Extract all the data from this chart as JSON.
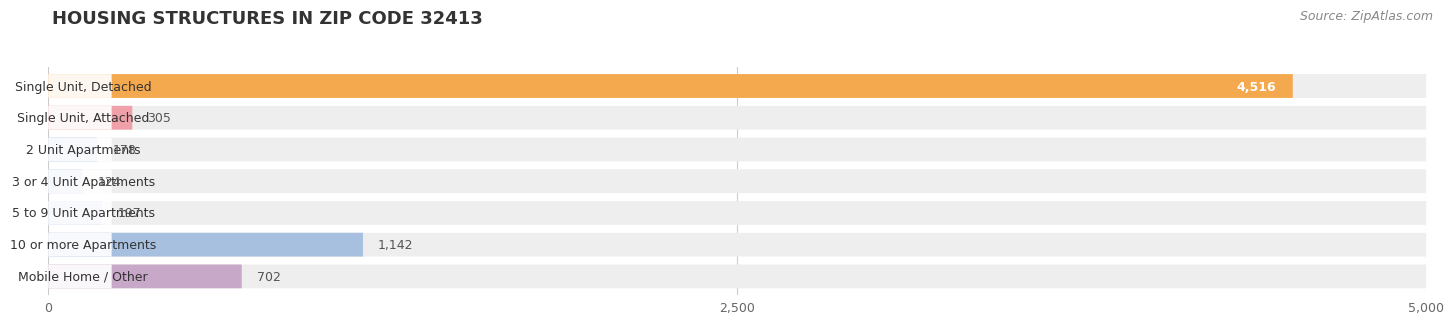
{
  "title": "HOUSING STRUCTURES IN ZIP CODE 32413",
  "source": "Source: ZipAtlas.com",
  "categories": [
    "Single Unit, Detached",
    "Single Unit, Attached",
    "2 Unit Apartments",
    "3 or 4 Unit Apartments",
    "5 to 9 Unit Apartments",
    "10 or more Apartments",
    "Mobile Home / Other"
  ],
  "values": [
    4516,
    305,
    178,
    124,
    197,
    1142,
    702
  ],
  "bar_colors": [
    "#f5a94e",
    "#f0a0a8",
    "#a8c0e0",
    "#a8c0e0",
    "#a8c0e0",
    "#a8c0e0",
    "#c8a8c8"
  ],
  "value_labels": [
    "4,516",
    "305",
    "178",
    "124",
    "197",
    "1,142",
    "702"
  ],
  "value_label_inside": [
    true,
    false,
    false,
    false,
    false,
    false,
    false
  ],
  "xlim": [
    0,
    5000
  ],
  "xticks": [
    0,
    2500,
    5000
  ],
  "xtick_labels": [
    "0",
    "2,500",
    "5,000"
  ],
  "background_color": "#ffffff",
  "bar_bg_color": "#eeeeee",
  "title_fontsize": 13,
  "label_fontsize": 9,
  "value_fontsize": 9,
  "source_fontsize": 9
}
